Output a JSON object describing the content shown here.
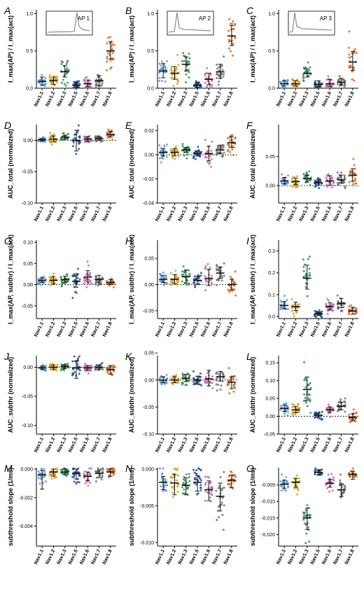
{
  "colors": {
    "Nav1.1": "#5b9bd5",
    "Nav1.2": "#d4a017",
    "Nav1.3": "#2e8b57",
    "Nav1.5": "#1f4e8c",
    "Nav1.6": "#c06aa8",
    "Nav1.7": "#6e6e6e",
    "Nav1.8": "#d2691e"
  },
  "chart_data": [
    {
      "panel": "A",
      "type": "scatter",
      "inset": "AP 1",
      "ylabel": "I_max(AP) / I_max(act)",
      "yticks": [
        "0.0",
        "0.5",
        "1.0"
      ],
      "ylim": [
        0,
        1.05
      ],
      "categories": [
        "Nav1.1",
        "Nav1.2",
        "Nav1.3",
        "Nav1.5",
        "Nav1.6",
        "Nav1.7",
        "Nav1.8"
      ],
      "values": [
        0.09,
        0.1,
        0.22,
        0.04,
        0.06,
        0.1,
        0.5
      ],
      "spread": [
        0.04,
        0.04,
        0.07,
        0.03,
        0.04,
        0.06,
        0.12
      ],
      "err_lo": [
        0.05,
        0.05,
        0.07,
        0.03,
        0.04,
        0.06,
        0.11
      ],
      "err_hi": [
        0.06,
        0.05,
        0.08,
        0.04,
        0.05,
        0.07,
        0.12
      ]
    },
    {
      "panel": "B",
      "type": "scatter",
      "inset": "AP 2",
      "ylabel": "I_max(AP) / I_max(act)",
      "yticks": [
        "0.0",
        "0.5",
        "1.0"
      ],
      "ylim": [
        0,
        1.05
      ],
      "categories": [
        "Nav1.1",
        "Nav1.2",
        "Nav1.3",
        "Nav1.5",
        "Nav1.6",
        "Nav1.7",
        "Nav1.8"
      ],
      "values": [
        0.23,
        0.2,
        0.32,
        0.04,
        0.12,
        0.22,
        0.7
      ],
      "spread": [
        0.08,
        0.07,
        0.08,
        0.03,
        0.07,
        0.09,
        0.13
      ],
      "err_lo": [
        0.09,
        0.08,
        0.09,
        0.03,
        0.07,
        0.09,
        0.13
      ],
      "err_hi": [
        0.1,
        0.09,
        0.1,
        0.04,
        0.08,
        0.1,
        0.14
      ]
    },
    {
      "panel": "C",
      "type": "scatter",
      "inset": "AP 3",
      "ylabel": "I_max(AP) / I_max(act)",
      "yticks": [
        "0.0",
        "0.5",
        "1.0"
      ],
      "ylim": [
        0,
        1.05
      ],
      "categories": [
        "Nav1.1",
        "Nav1.2",
        "Nav1.3",
        "Nav1.5",
        "Nav1.6",
        "Nav1.7",
        "Nav1.8"
      ],
      "values": [
        0.06,
        0.06,
        0.2,
        0.05,
        0.06,
        0.08,
        0.35
      ],
      "spread": [
        0.03,
        0.03,
        0.05,
        0.03,
        0.04,
        0.04,
        0.12
      ],
      "err_lo": [
        0.03,
        0.03,
        0.05,
        0.03,
        0.04,
        0.04,
        0.11
      ],
      "err_hi": [
        0.04,
        0.04,
        0.06,
        0.05,
        0.06,
        0.05,
        0.14
      ]
    },
    {
      "panel": "D",
      "type": "scatter",
      "ylabel": "AUC_total (normalized)",
      "yticks": [
        "-0.10",
        "-0.05",
        "0.00"
      ],
      "ylim": [
        -0.1,
        0.025
      ],
      "zero_line": true,
      "categories": [
        "Nav1.1",
        "Nav1.2",
        "Nav1.3",
        "Nav1.5",
        "Nav1.6",
        "Nav1.7",
        "Nav1.8"
      ],
      "values": [
        0.001,
        0.002,
        0.005,
        0.0,
        0.002,
        0.003,
        0.009
      ],
      "spread": [
        0.002,
        0.004,
        0.003,
        0.01,
        0.004,
        0.003,
        0.004
      ],
      "err_lo": [
        0.002,
        0.004,
        0.003,
        0.017,
        0.004,
        0.003,
        0.004
      ],
      "err_hi": [
        0.002,
        0.005,
        0.003,
        0.016,
        0.004,
        0.003,
        0.005
      ]
    },
    {
      "panel": "E",
      "type": "scatter",
      "ylabel": "AUC_total (normalized)",
      "yticks": [
        "-0.04",
        "-0.02",
        "0.00",
        "0.02"
      ],
      "ylim": [
        -0.04,
        0.025
      ],
      "zero_line": true,
      "categories": [
        "Nav1.1",
        "Nav1.2",
        "Nav1.3",
        "Nav1.5",
        "Nav1.6",
        "Nav1.7",
        "Nav1.8"
      ],
      "values": [
        0.002,
        0.002,
        0.004,
        0.001,
        0.001,
        0.004,
        0.01
      ],
      "spread": [
        0.003,
        0.003,
        0.002,
        0.002,
        0.005,
        0.003,
        0.004
      ],
      "err_lo": [
        0.003,
        0.003,
        0.002,
        0.002,
        0.006,
        0.003,
        0.004
      ],
      "err_hi": [
        0.003,
        0.003,
        0.002,
        0.002,
        0.006,
        0.004,
        0.005
      ]
    },
    {
      "panel": "F",
      "type": "scatter",
      "ylabel": "AUC_total (normalized)",
      "yticks": [
        "0.00",
        "0.05"
      ],
      "ylim": [
        -0.03,
        0.105
      ],
      "zero_line": true,
      "categories": [
        "Nav1.1",
        "Nav1.2",
        "Nav1.3",
        "Nav1.5",
        "Nav1.6",
        "Nav1.7",
        "Nav1.8"
      ],
      "values": [
        0.008,
        0.007,
        0.012,
        0.005,
        0.008,
        0.01,
        0.018
      ],
      "spread": [
        0.005,
        0.005,
        0.006,
        0.004,
        0.007,
        0.006,
        0.01
      ],
      "err_lo": [
        0.005,
        0.005,
        0.006,
        0.004,
        0.007,
        0.006,
        0.01
      ],
      "err_hi": [
        0.006,
        0.006,
        0.006,
        0.005,
        0.009,
        0.008,
        0.011
      ]
    },
    {
      "panel": "G",
      "type": "scatter",
      "ylabel": "I_max(AP, subthr) / I_max(act)",
      "yticks": [
        "-0.05",
        "0.00",
        "0.05",
        "0.10"
      ],
      "ylim": [
        -0.08,
        0.105
      ],
      "zero_line": true,
      "categories": [
        "Nav1.1",
        "Nav1.2",
        "Nav1.3",
        "Nav1.5",
        "Nav1.6",
        "Nav1.7",
        "Nav1.8"
      ],
      "values": [
        0.01,
        0.01,
        0.012,
        0.008,
        0.018,
        0.012,
        0.005
      ],
      "spread": [
        0.005,
        0.007,
        0.007,
        0.012,
        0.012,
        0.008,
        0.005
      ],
      "err_lo": [
        0.005,
        0.008,
        0.007,
        0.014,
        0.012,
        0.008,
        0.005
      ],
      "err_hi": [
        0.006,
        0.009,
        0.008,
        0.014,
        0.015,
        0.01,
        0.007
      ]
    },
    {
      "panel": "H",
      "type": "scatter",
      "ylabel": "I_max(AP, subthr) / I_max(act)",
      "yticks": [
        "-0.05",
        "0.00",
        "0.05"
      ],
      "ylim": [
        -0.065,
        0.085
      ],
      "zero_line": true,
      "categories": [
        "Nav1.1",
        "Nav1.2",
        "Nav1.3",
        "Nav1.5",
        "Nav1.6",
        "Nav1.7",
        "Nav1.8"
      ],
      "values": [
        0.01,
        0.01,
        0.015,
        0.008,
        0.012,
        0.022,
        0.0
      ],
      "spread": [
        0.006,
        0.008,
        0.012,
        0.007,
        0.012,
        0.01,
        0.01
      ],
      "err_lo": [
        0.006,
        0.008,
        0.012,
        0.007,
        0.014,
        0.01,
        0.01
      ],
      "err_hi": [
        0.007,
        0.009,
        0.013,
        0.008,
        0.017,
        0.012,
        0.01
      ]
    },
    {
      "panel": "I",
      "type": "scatter",
      "ylabel": "I_max(AP, subthr) / I_max(act)",
      "yticks": [
        "0.0",
        "0.1",
        "0.2",
        "0.3"
      ],
      "ylim": [
        -0.01,
        0.35
      ],
      "categories": [
        "Nav1.1",
        "Nav1.2",
        "Nav1.3",
        "Nav1.5",
        "Nav1.6",
        "Nav1.7",
        "Nav1.8"
      ],
      "values": [
        0.05,
        0.045,
        0.175,
        0.012,
        0.045,
        0.06,
        0.025
      ],
      "spread": [
        0.015,
        0.018,
        0.05,
        0.007,
        0.015,
        0.02,
        0.015
      ],
      "err_lo": [
        0.015,
        0.018,
        0.05,
        0.008,
        0.015,
        0.02,
        0.015
      ],
      "err_hi": [
        0.018,
        0.02,
        0.06,
        0.008,
        0.017,
        0.022,
        0.017
      ]
    },
    {
      "panel": "J",
      "type": "scatter",
      "ylabel": "AUC_subthr (normalized)",
      "yticks": [
        "-0.10",
        "-0.05",
        "0.00"
      ],
      "ylim": [
        -0.115,
        0.02
      ],
      "zero_line": true,
      "categories": [
        "Nav1.1",
        "Nav1.2",
        "Nav1.3",
        "Nav1.5",
        "Nav1.6",
        "Nav1.7",
        "Nav1.8"
      ],
      "values": [
        -0.001,
        0.0,
        0.001,
        -0.001,
        -0.001,
        0.0,
        -0.004
      ],
      "spread": [
        0.003,
        0.004,
        0.003,
        0.01,
        0.004,
        0.004,
        0.006
      ],
      "err_lo": [
        0.003,
        0.004,
        0.003,
        0.018,
        0.004,
        0.004,
        0.008
      ],
      "err_hi": [
        0.003,
        0.004,
        0.003,
        0.012,
        0.004,
        0.004,
        0.007
      ]
    },
    {
      "panel": "K",
      "type": "scatter",
      "ylabel": "AUC_subthr (normalized)",
      "yticks": [
        "-0.10",
        "-0.05",
        "0.00",
        "0.05"
      ],
      "ylim": [
        -0.1,
        0.045
      ],
      "zero_line": true,
      "categories": [
        "Nav1.1",
        "Nav1.2",
        "Nav1.3",
        "Nav1.5",
        "Nav1.6",
        "Nav1.7",
        "Nav1.8"
      ],
      "values": [
        0.0,
        0.0,
        0.003,
        0.0,
        0.002,
        0.006,
        -0.004
      ],
      "spread": [
        0.005,
        0.005,
        0.006,
        0.006,
        0.01,
        0.008,
        0.01
      ],
      "err_lo": [
        0.005,
        0.005,
        0.006,
        0.008,
        0.013,
        0.008,
        0.012
      ],
      "err_hi": [
        0.006,
        0.006,
        0.007,
        0.007,
        0.016,
        0.01,
        0.01
      ]
    },
    {
      "panel": "L",
      "type": "scatter",
      "ylabel": "AUC_subthr (normalized)",
      "yticks": [
        "-0.05",
        "0.00",
        "0.05",
        "0.10",
        "0.15"
      ],
      "ylim": [
        -0.05,
        0.17
      ],
      "zero_line": true,
      "categories": [
        "Nav1.1",
        "Nav1.2",
        "Nav1.3",
        "Nav1.5",
        "Nav1.6",
        "Nav1.7",
        "Nav1.8"
      ],
      "values": [
        0.022,
        0.018,
        0.075,
        0.003,
        0.018,
        0.028,
        -0.003
      ],
      "spread": [
        0.008,
        0.008,
        0.03,
        0.005,
        0.007,
        0.01,
        0.01
      ],
      "err_lo": [
        0.008,
        0.008,
        0.03,
        0.005,
        0.007,
        0.01,
        0.01
      ],
      "err_hi": [
        0.009,
        0.009,
        0.035,
        0.006,
        0.008,
        0.011,
        0.01
      ]
    },
    {
      "panel": "M",
      "type": "scatter",
      "ylabel": "subthreshold slope (1/ms)",
      "yticks": [
        "-0.004",
        "-0.002",
        "0.000"
      ],
      "ylim": [
        -0.0054,
        0.0001
      ],
      "categories": [
        "Nav1.1",
        "Nav1.2",
        "Nav1.3",
        "Nav1.5",
        "Nav1.6",
        "Nav1.7",
        "Nav1.8"
      ],
      "values": [
        -0.0004,
        -0.0002,
        -0.0002,
        -0.0003,
        -0.0005,
        -0.0003,
        -0.0002
      ],
      "spread": [
        0.0003,
        0.0002,
        0.0002,
        0.0003,
        0.0003,
        0.0002,
        0.0002
      ],
      "err_lo": [
        0.001,
        0.0003,
        0.0002,
        0.0004,
        0.0003,
        0.0003,
        0.0003
      ],
      "err_hi": [
        0.0003,
        0.0002,
        0.0002,
        0.0003,
        0.0003,
        0.0002,
        0.0002
      ]
    },
    {
      "panel": "N",
      "type": "scatter",
      "ylabel": "subthreshold slope (1/ms)",
      "yticks": [
        "-0.010",
        "-0.005",
        "0.000"
      ],
      "ylim": [
        -0.0105,
        0.0002
      ],
      "categories": [
        "Nav1.1",
        "Nav1.2",
        "Nav1.3",
        "Nav1.5",
        "Nav1.6",
        "Nav1.7",
        "Nav1.8"
      ],
      "values": [
        -0.0018,
        -0.0019,
        -0.0022,
        -0.0018,
        -0.0028,
        -0.0037,
        -0.0015
      ],
      "spread": [
        0.0008,
        0.0012,
        0.001,
        0.001,
        0.0013,
        0.0018,
        0.0007
      ],
      "err_lo": [
        0.001,
        0.0016,
        0.0013,
        0.0012,
        0.0015,
        0.002,
        0.001
      ],
      "err_hi": [
        0.0008,
        0.0012,
        0.001,
        0.0009,
        0.0012,
        0.0018,
        0.0007
      ]
    },
    {
      "panel": "O",
      "type": "scatter",
      "ylabel": "subthreshold slope (1/ms)",
      "yticks": [
        "-0.020",
        "-0.015",
        "-0.010",
        "-0.005"
      ],
      "ylim": [
        -0.0235,
        0.0002
      ],
      "categories": [
        "Nav1.1",
        "Nav1.2",
        "Nav1.3",
        "Nav1.5",
        "Nav1.6",
        "Nav1.7",
        "Nav1.8"
      ],
      "values": [
        -0.0048,
        -0.0042,
        -0.015,
        -0.0012,
        -0.0045,
        -0.0065,
        -0.0018
      ],
      "spread": [
        0.001,
        0.0012,
        0.003,
        0.0006,
        0.0012,
        0.0018,
        0.0008
      ],
      "err_lo": [
        0.0012,
        0.0015,
        0.0035,
        0.0008,
        0.0012,
        0.002,
        0.0015
      ],
      "err_hi": [
        0.0012,
        0.0012,
        0.003,
        0.0007,
        0.0012,
        0.0018,
        0.0008
      ]
    }
  ]
}
